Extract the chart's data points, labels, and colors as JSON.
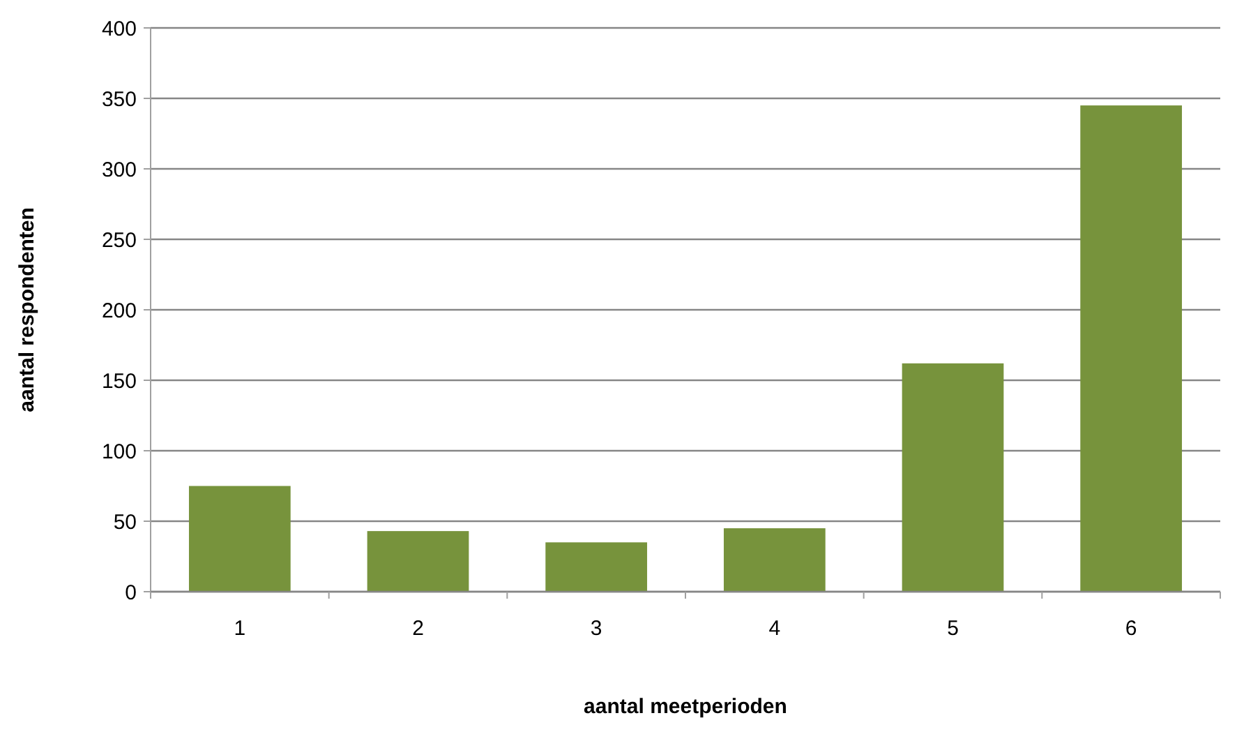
{
  "chart_data": {
    "type": "bar",
    "xlabel": "aantal meetperioden",
    "ylabel": "aantal respondenten",
    "categories": [
      "1",
      "2",
      "3",
      "4",
      "5",
      "6"
    ],
    "values": [
      75,
      43,
      35,
      45,
      162,
      345
    ],
    "color": "#77933c",
    "ylim": [
      0,
      400
    ],
    "yticks": [
      0,
      50,
      100,
      150,
      200,
      250,
      300,
      350,
      400
    ],
    "grid": "y"
  }
}
